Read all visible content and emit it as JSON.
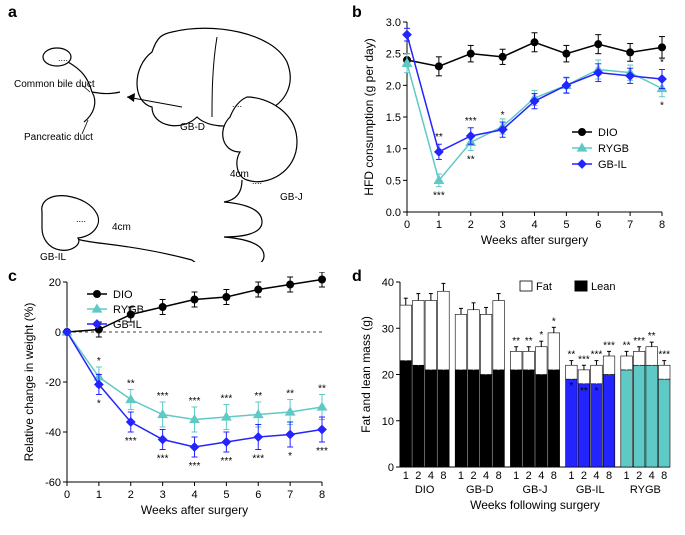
{
  "panels": {
    "a": "a",
    "b": "b",
    "c": "c",
    "d": "d"
  },
  "panel_a": {
    "labels": {
      "common_bile_duct": "Common bile duct",
      "pancreatic_duct": "Pancreatic duct",
      "gb_d": "GB-D",
      "gb_j": "GB-J",
      "gb_il": "GB-IL",
      "four_cm_1": "4cm",
      "four_cm_2": "4cm"
    }
  },
  "panel_b": {
    "type": "line",
    "x_label": "Weeks after surgery",
    "y_label": "HFD consumption (g per day)",
    "xlim": [
      0,
      8
    ],
    "ylim": [
      0,
      3.0
    ],
    "xticks": [
      0,
      1,
      2,
      3,
      4,
      5,
      6,
      7,
      8
    ],
    "yticks": [
      0.0,
      0.5,
      1.0,
      1.5,
      2.0,
      2.5,
      3.0
    ],
    "ytick_labels": [
      "0.0",
      "0.5",
      "1.0",
      "1.5",
      "2.0",
      "2.5",
      "3.0"
    ],
    "series": [
      {
        "name": "DIO",
        "color": "#000000",
        "marker": "circle",
        "fill": "#000000",
        "x": [
          0,
          1,
          2,
          3,
          4,
          5,
          6,
          7,
          8
        ],
        "y": [
          2.4,
          2.3,
          2.5,
          2.45,
          2.68,
          2.5,
          2.65,
          2.52,
          2.6
        ],
        "err": [
          0.1,
          0.15,
          0.13,
          0.12,
          0.15,
          0.13,
          0.15,
          0.14,
          0.17
        ]
      },
      {
        "name": "RYGB",
        "color": "#5fc9c6",
        "marker": "triangle",
        "fill": "#5fc9c6",
        "x": [
          0,
          1,
          2,
          3,
          4,
          5,
          6,
          7,
          8
        ],
        "y": [
          2.35,
          0.5,
          1.1,
          1.35,
          1.8,
          2.0,
          2.25,
          2.2,
          1.95
        ],
        "err": [
          0.15,
          0.1,
          0.13,
          0.12,
          0.12,
          0.13,
          0.15,
          0.12,
          0.13
        ],
        "sig": [
          "",
          "***",
          "**",
          "",
          "",
          "",
          "",
          "",
          "*"
        ]
      },
      {
        "name": "GB-IL",
        "color": "#2424ff",
        "marker": "diamond",
        "fill": "#2424ff",
        "x": [
          0,
          1,
          2,
          3,
          4,
          5,
          6,
          7,
          8
        ],
        "y": [
          2.8,
          0.95,
          1.2,
          1.3,
          1.75,
          2.0,
          2.2,
          2.15,
          2.1
        ],
        "err": [
          0.1,
          0.12,
          0.13,
          0.12,
          0.12,
          0.12,
          0.14,
          0.12,
          0.15
        ],
        "sig": [
          "",
          "**",
          "***",
          "*",
          "",
          "",
          "",
          "",
          "*"
        ]
      }
    ]
  },
  "panel_c": {
    "type": "line",
    "x_label": "Weeks after surgery",
    "y_label": "Relative change in weight (%)",
    "xlim": [
      0,
      8
    ],
    "ylim": [
      -60,
      20
    ],
    "xticks": [
      0,
      1,
      2,
      3,
      4,
      5,
      6,
      7,
      8
    ],
    "yticks": [
      -60,
      -40,
      -20,
      0,
      20
    ],
    "series": [
      {
        "name": "DIO",
        "color": "#000000",
        "marker": "circle",
        "fill": "#000000",
        "x": [
          0,
          1,
          2,
          3,
          4,
          5,
          6,
          7,
          8
        ],
        "y": [
          0,
          1,
          7,
          10,
          13,
          14,
          17,
          19,
          21
        ],
        "err": [
          0,
          3,
          3,
          3,
          3,
          3,
          3,
          3,
          3
        ]
      },
      {
        "name": "RYGB",
        "color": "#5fc9c6",
        "marker": "triangle",
        "fill": "#5fc9c6",
        "x": [
          0,
          1,
          2,
          3,
          4,
          5,
          6,
          7,
          8
        ],
        "y": [
          0,
          -18,
          -27,
          -33,
          -35,
          -34,
          -33,
          -32,
          -30
        ],
        "err": [
          0,
          4,
          4,
          5,
          5,
          5,
          5,
          5,
          5
        ],
        "sig": [
          "",
          "*",
          "**",
          "***",
          "***",
          "***",
          "**",
          "**",
          "**"
        ]
      },
      {
        "name": "GB-IL",
        "color": "#2424ff",
        "marker": "diamond",
        "fill": "#2424ff",
        "x": [
          0,
          1,
          2,
          3,
          4,
          5,
          6,
          7,
          8
        ],
        "y": [
          0,
          -21,
          -36,
          -43,
          -46,
          -44,
          -42,
          -41,
          -39
        ],
        "err": [
          0,
          4,
          4,
          4,
          4,
          4,
          5,
          5,
          5
        ],
        "sig": [
          "",
          "*",
          "***",
          "***",
          "***",
          "***",
          "***",
          "*",
          "***"
        ]
      }
    ]
  },
  "panel_d": {
    "type": "stacked-bar",
    "x_label": "Weeks following surgery",
    "y_label": "Fat and lean mass (g)",
    "ylim": [
      0,
      40
    ],
    "yticks": [
      0,
      10,
      20,
      30,
      40
    ],
    "legend": {
      "fat": "Fat",
      "lean": "Lean"
    },
    "weeks": [
      "1",
      "2",
      "4",
      "8"
    ],
    "groups": [
      {
        "name": "DIO",
        "bar_color": "#000000",
        "fat_color": "#ffffff",
        "lean": [
          23,
          22,
          21,
          21
        ],
        "fat": [
          12,
          14,
          15,
          17
        ],
        "lean_err": [
          1.5,
          1.5,
          1.5,
          1.5
        ],
        "fat_err": [
          1.5,
          1.5,
          1.5,
          1.7
        ],
        "sig_top": [
          "",
          "",
          "",
          ""
        ],
        "sig_mid": [
          "",
          "",
          "",
          ""
        ]
      },
      {
        "name": "GB-D",
        "bar_color": "#000000",
        "fat_color": "#ffffff",
        "lean": [
          21,
          21,
          20,
          21
        ],
        "fat": [
          12,
          13,
          13,
          15
        ],
        "lean_err": [
          1.5,
          1.5,
          1.5,
          1.5
        ],
        "fat_err": [
          1.3,
          1.5,
          1.5,
          1.5
        ],
        "sig_top": [
          "",
          "",
          "",
          ""
        ],
        "sig_mid": [
          "",
          "",
          "",
          ""
        ]
      },
      {
        "name": "GB-J",
        "bar_color": "#000000",
        "fat_color": "#ffffff",
        "lean": [
          21,
          21,
          20,
          21
        ],
        "fat": [
          4,
          4,
          6,
          8
        ],
        "lean_err": [
          1.5,
          1.5,
          1.5,
          1.5
        ],
        "fat_err": [
          1.0,
          1.0,
          1.2,
          1.2
        ],
        "sig_top": [
          "**",
          "**",
          "*",
          "*"
        ],
        "sig_mid": [
          "",
          "",
          "",
          ""
        ]
      },
      {
        "name": "GB-IL",
        "bar_color": "#2424ff",
        "fat_color": "#ffffff",
        "lean": [
          19,
          18,
          18,
          20
        ],
        "fat": [
          3,
          3,
          4,
          4
        ],
        "lean_err": [
          1.3,
          1.3,
          1.3,
          1.3
        ],
        "fat_err": [
          1.0,
          1.0,
          1.0,
          1.0
        ],
        "sig_top": [
          "**",
          "***",
          "***",
          "***"
        ],
        "sig_mid": [
          "*",
          "**",
          "*",
          ""
        ]
      },
      {
        "name": "RYGB",
        "bar_color": "#5fc9c6",
        "fat_color": "#ffffff",
        "lean": [
          21,
          22,
          22,
          19
        ],
        "fat": [
          3,
          3,
          4,
          3
        ],
        "lean_err": [
          1.3,
          1.5,
          1.3,
          1.3
        ],
        "fat_err": [
          1.0,
          1.0,
          1.0,
          1.0
        ],
        "sig_top": [
          "**",
          "***",
          "**",
          "***"
        ],
        "sig_mid": [
          "",
          "",
          "",
          ""
        ]
      }
    ]
  }
}
